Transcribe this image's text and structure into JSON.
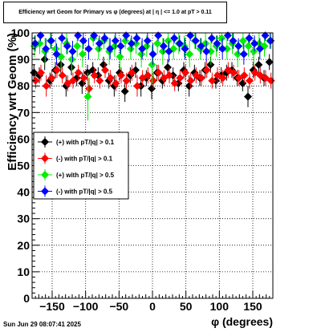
{
  "chart_data": {
    "type": "scatter",
    "title": "Efficiency wrt Geom for Primary vs φ (degrees) at | η | <= 1.0 at pT > 0.11",
    "xlabel": "φ (degrees)",
    "ylabel": "Efficiency wrt Geom (%)",
    "xlim": [
      -180,
      180
    ],
    "ylim": [
      0,
      100
    ],
    "x_ticks": [
      -150,
      -100,
      -50,
      0,
      50,
      100,
      150
    ],
    "x_tick_labels": [
      "−150",
      "−100",
      "−50",
      "0",
      "50",
      "100",
      "150"
    ],
    "y_ticks": [
      0,
      10,
      20,
      30,
      40,
      50,
      60,
      70,
      80,
      90,
      100
    ],
    "y_tick_labels": [
      "0",
      "10",
      "20",
      "30",
      "40",
      "50",
      "60",
      "70",
      "80",
      "90",
      "100"
    ],
    "grid": true,
    "legend_position": "middle-left",
    "x": [
      -176,
      -168,
      -160,
      -152,
      -144,
      -136,
      -128,
      -120,
      -112,
      -104,
      -96,
      -88,
      -80,
      -72,
      -64,
      -56,
      -48,
      -40,
      -32,
      -24,
      -16,
      -8,
      0,
      8,
      16,
      24,
      32,
      40,
      48,
      56,
      64,
      72,
      80,
      88,
      96,
      104,
      112,
      120,
      128,
      136,
      144,
      152,
      160,
      168,
      176
    ],
    "series": [
      {
        "name": "(+) with pT/|q| > 0.1",
        "color": "#000000",
        "marker": "diamond",
        "values": [
          85,
          84,
          90,
          82,
          86,
          88,
          80,
          87,
          83,
          81,
          85,
          86,
          84,
          88,
          82,
          80,
          85,
          78,
          84,
          86,
          80,
          83,
          79,
          85,
          82,
          87,
          84,
          81,
          86,
          80,
          85,
          83,
          86,
          88,
          82,
          84,
          85,
          86,
          83,
          81,
          76,
          86,
          88,
          83,
          89
        ],
        "errors": [
          3,
          3,
          4,
          3,
          3,
          3,
          4,
          3,
          3,
          4,
          3,
          3,
          3,
          3,
          3,
          4,
          3,
          4,
          3,
          3,
          4,
          3,
          4,
          3,
          3,
          3,
          3,
          3,
          3,
          4,
          3,
          3,
          3,
          3,
          3,
          3,
          3,
          3,
          3,
          3,
          4,
          3,
          3,
          3,
          3
        ]
      },
      {
        "name": "(-) with pT/|q| > 0.1",
        "color": "#ff0000",
        "marker": "diamond",
        "values": [
          82,
          85,
          80,
          83,
          86,
          84,
          81,
          82,
          85,
          83,
          79,
          84,
          82,
          86,
          83,
          81,
          84,
          82,
          85,
          80,
          83,
          84,
          82,
          85,
          83,
          84,
          81,
          83,
          85,
          82,
          84,
          83,
          86,
          82,
          84,
          83,
          86,
          85,
          83,
          84,
          82,
          85,
          84,
          83,
          82
        ],
        "errors": [
          3,
          3,
          4,
          3,
          3,
          3,
          3,
          3,
          3,
          3,
          4,
          3,
          3,
          3,
          3,
          3,
          3,
          3,
          3,
          4,
          3,
          3,
          3,
          3,
          3,
          3,
          3,
          3,
          3,
          3,
          3,
          3,
          3,
          3,
          3,
          3,
          3,
          3,
          3,
          3,
          3,
          3,
          3,
          3,
          3
        ]
      },
      {
        "name": "(+) with pT/|q| > 0.5",
        "color": "#00ee00",
        "marker": "diamond",
        "values": [
          95,
          96,
          93,
          97,
          94,
          91,
          96,
          90,
          95,
          92,
          76,
          98,
          94,
          97,
          93,
          95,
          91,
          97,
          94,
          96,
          92,
          95,
          88,
          96,
          93,
          97,
          94,
          96,
          95,
          92,
          97,
          94,
          96,
          93,
          95,
          98,
          94,
          96,
          92,
          97,
          95,
          93,
          96,
          95,
          97
        ],
        "errors": [
          4,
          4,
          5,
          3,
          4,
          5,
          4,
          5,
          4,
          5,
          9,
          3,
          4,
          3,
          5,
          4,
          5,
          3,
          4,
          4,
          5,
          4,
          7,
          4,
          5,
          3,
          4,
          4,
          4,
          5,
          3,
          4,
          4,
          5,
          4,
          3,
          4,
          4,
          5,
          3,
          4,
          5,
          4,
          4,
          3
        ]
      },
      {
        "name": "(-) with pT/|q| > 0.5",
        "color": "#0000ff",
        "marker": "diamond",
        "values": [
          96,
          99,
          94,
          97,
          92,
          98,
          95,
          93,
          99,
          97,
          94,
          99,
          96,
          98,
          94,
          97,
          95,
          99,
          96,
          98,
          94,
          97,
          92,
          99,
          95,
          93,
          98,
          96,
          94,
          99,
          97,
          95,
          93,
          98,
          96,
          94,
          99,
          97,
          95,
          92,
          98,
          96,
          94,
          99,
          97
        ],
        "errors": [
          3,
          2,
          4,
          3,
          4,
          2,
          3,
          4,
          2,
          3,
          4,
          2,
          3,
          2,
          4,
          3,
          3,
          2,
          3,
          2,
          4,
          3,
          4,
          2,
          3,
          4,
          2,
          3,
          4,
          2,
          3,
          3,
          4,
          2,
          3,
          4,
          2,
          3,
          3,
          4,
          2,
          3,
          4,
          2,
          3
        ]
      }
    ]
  },
  "footer": "Sun Jun 29 08:07:41 2025"
}
